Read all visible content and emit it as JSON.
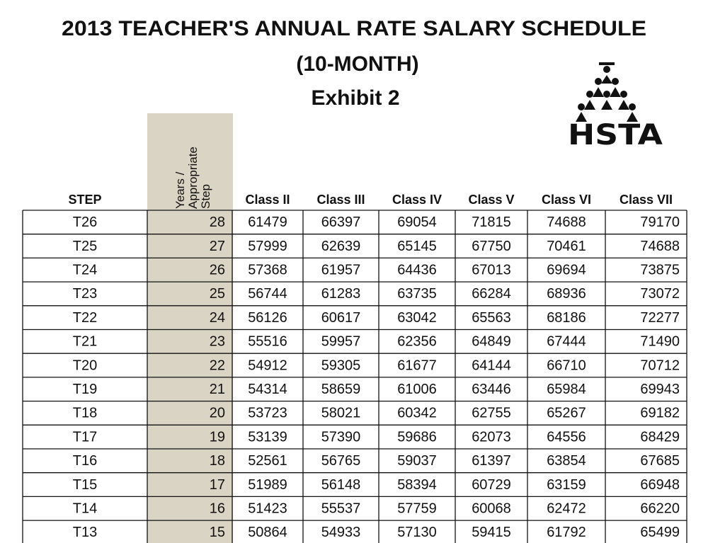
{
  "header": {
    "title": "2013 TEACHER'S ANNUAL RATE SALARY SCHEDULE",
    "subtitle": "(10-MONTH)",
    "exhibit": "Exhibit 2",
    "logo_text": "HSTA"
  },
  "table": {
    "step_header": "STEP",
    "years_header": [
      "Years /",
      "Appropriate",
      "Step"
    ],
    "class_headers": [
      "Class II",
      "Class III",
      "Class IV",
      "Class V",
      "Class VI",
      "Class VII"
    ],
    "rows": [
      [
        "T26",
        28,
        61479,
        66397,
        69054,
        71815,
        74688,
        79170
      ],
      [
        "T25",
        27,
        57999,
        62639,
        65145,
        67750,
        70461,
        74688
      ],
      [
        "T24",
        26,
        57368,
        61957,
        64436,
        67013,
        69694,
        73875
      ],
      [
        "T23",
        25,
        56744,
        61283,
        63735,
        66284,
        68936,
        73072
      ],
      [
        "T22",
        24,
        56126,
        60617,
        63042,
        65563,
        68186,
        72277
      ],
      [
        "T21",
        23,
        55516,
        59957,
        62356,
        64849,
        67444,
        71490
      ],
      [
        "T20",
        22,
        54912,
        59305,
        61677,
        64144,
        66710,
        70712
      ],
      [
        "T19",
        21,
        54314,
        58659,
        61006,
        63446,
        65984,
        69943
      ],
      [
        "T18",
        20,
        53723,
        58021,
        60342,
        62755,
        65267,
        69182
      ],
      [
        "T17",
        19,
        53139,
        57390,
        59686,
        62073,
        64556,
        68429
      ],
      [
        "T16",
        18,
        52561,
        56765,
        59037,
        61397,
        63854,
        67685
      ],
      [
        "T15",
        17,
        51989,
        56148,
        58394,
        60729,
        63159,
        66948
      ],
      [
        "T14",
        16,
        51423,
        55537,
        57759,
        60068,
        62472,
        66220
      ],
      [
        "T13",
        15,
        50864,
        54933,
        57130,
        59415,
        61792,
        65499
      ]
    ]
  }
}
